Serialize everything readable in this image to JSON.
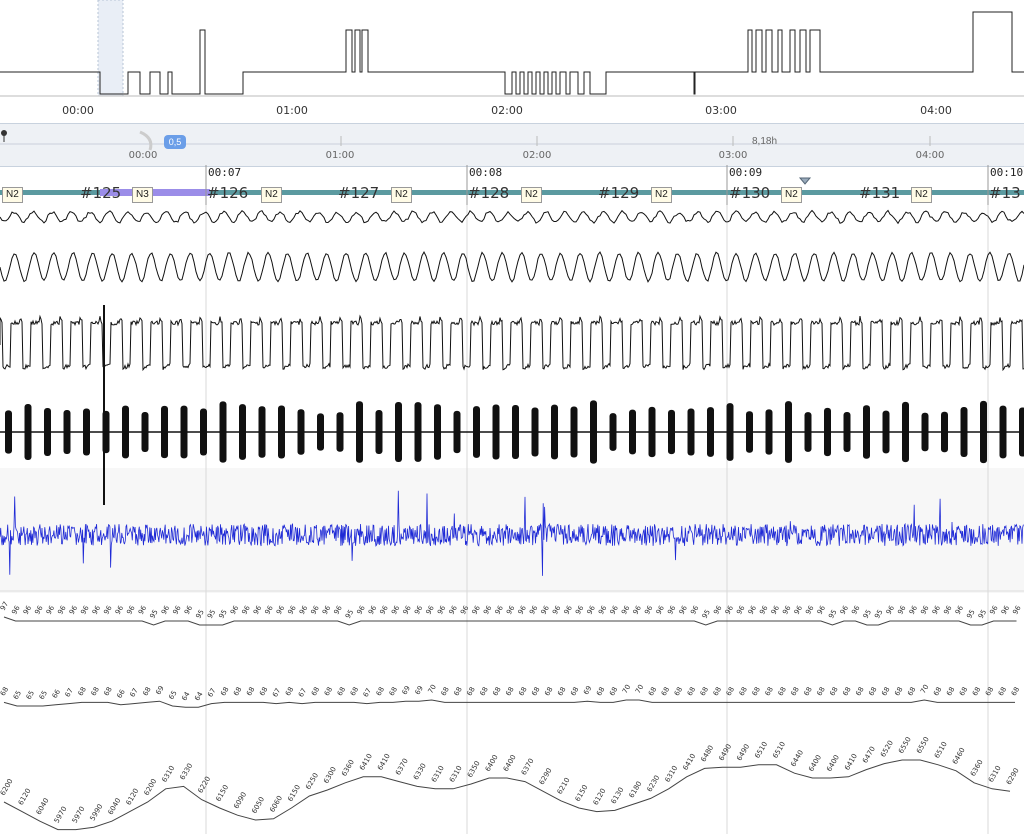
{
  "hypnogram": {
    "time_labels": [
      "00:00",
      "01:00",
      "02:00",
      "03:00",
      "04:00"
    ]
  },
  "navigator": {
    "time_labels": [
      "00:00",
      "01:00",
      "02:00",
      "03:00",
      "04:00"
    ],
    "duration": "8,18h",
    "cursor_value": "0,5"
  },
  "epoch_bar": {
    "time_labels": [
      "00:07",
      "00:08",
      "00:09",
      "00:10"
    ],
    "epochs": [
      "#125",
      "#126",
      "#127",
      "#128",
      "#129",
      "#130",
      "#131",
      "#13"
    ],
    "stages": [
      "N2",
      "N3",
      "N2",
      "N2",
      "N2",
      "N2",
      "N2",
      "N2"
    ]
  },
  "channels": {
    "spo2_values": [
      "97",
      "96",
      "96",
      "96",
      "96",
      "96",
      "96",
      "96",
      "96",
      "96",
      "96",
      "96",
      "96",
      "95",
      "96",
      "96",
      "96",
      "95",
      "95",
      "95",
      "96",
      "96",
      "96",
      "96",
      "96",
      "96",
      "96",
      "96",
      "96",
      "96",
      "95",
      "96",
      "96",
      "96",
      "96",
      "96",
      "96",
      "96",
      "96",
      "96",
      "96",
      "96",
      "96",
      "96",
      "96",
      "96",
      "96",
      "96",
      "96",
      "96",
      "96",
      "96",
      "96",
      "96",
      "96",
      "96",
      "96",
      "96",
      "96",
      "96",
      "96",
      "95",
      "96",
      "96",
      "96",
      "96",
      "96",
      "96",
      "96",
      "96",
      "96",
      "96",
      "95",
      "96",
      "96",
      "95",
      "95",
      "96",
      "96",
      "96",
      "96",
      "96",
      "96",
      "96",
      "95",
      "95",
      "96",
      "96",
      "96"
    ],
    "pulse_values": [
      "68",
      "65",
      "65",
      "65",
      "66",
      "67",
      "68",
      "68",
      "68",
      "66",
      "67",
      "68",
      "69",
      "65",
      "64",
      "64",
      "67",
      "68",
      "68",
      "68",
      "68",
      "67",
      "68",
      "67",
      "68",
      "68",
      "68",
      "68",
      "67",
      "68",
      "68",
      "69",
      "69",
      "70",
      "68",
      "68",
      "68",
      "68",
      "68",
      "68",
      "68",
      "68",
      "68",
      "68",
      "68",
      "69",
      "68",
      "68",
      "70",
      "70",
      "68",
      "68",
      "68",
      "68",
      "68",
      "68",
      "68",
      "68",
      "68",
      "68",
      "68",
      "68",
      "68",
      "68",
      "68",
      "68",
      "68",
      "68",
      "68",
      "68",
      "68",
      "70",
      "68",
      "68",
      "68",
      "68",
      "68",
      "68",
      "68"
    ],
    "pressure_values": [
      "6200",
      "6120",
      "6040",
      "5970",
      "5970",
      "5990",
      "6040",
      "6120",
      "6200",
      "6310",
      "6330",
      "6220",
      "6150",
      "6090",
      "6050",
      "6060",
      "6150",
      "6250",
      "6300",
      "6360",
      "6410",
      "6410",
      "6370",
      "6330",
      "6310",
      "6310",
      "6350",
      "6400",
      "6400",
      "6370",
      "6290",
      "6210",
      "6150",
      "6120",
      "6130",
      "6180",
      "6230",
      "6310",
      "6410",
      "6480",
      "6490",
      "6490",
      "6510",
      "6510",
      "6440",
      "6400",
      "6400",
      "6410",
      "6470",
      "6520",
      "6550",
      "6550",
      "6510",
      "6460",
      "6360",
      "6310",
      "6290"
    ]
  }
}
